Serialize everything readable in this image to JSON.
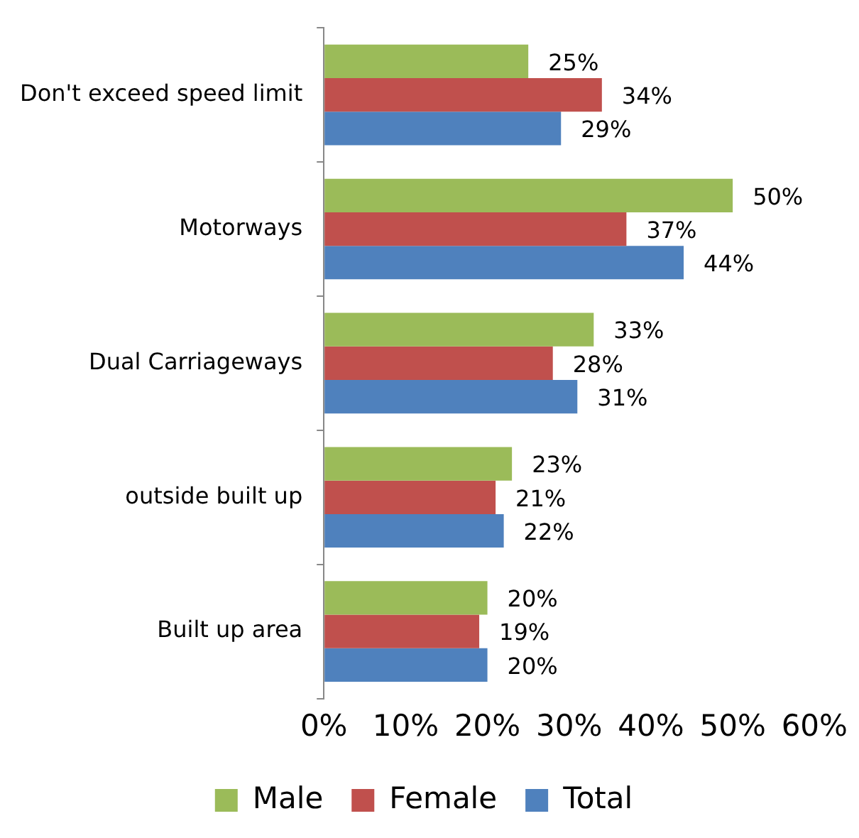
{
  "chart_data": {
    "type": "bar",
    "orientation": "horizontal",
    "categories": [
      "Don't exceed speed limit",
      "Motorways",
      "Dual Carriageways",
      "outside built up",
      "Built up area"
    ],
    "series": [
      {
        "name": "Male",
        "color": "#9bbb59",
        "values": [
          25,
          50,
          33,
          23,
          20
        ],
        "value_labels": [
          "25%",
          "50%",
          "33%",
          "23%",
          "20%"
        ]
      },
      {
        "name": "Female",
        "color": "#c0504d",
        "values": [
          34,
          37,
          28,
          21,
          19
        ],
        "value_labels": [
          "34%",
          "37%",
          "28%",
          "21%",
          "19%"
        ]
      },
      {
        "name": "Total",
        "color": "#4f81bd",
        "values": [
          29,
          44,
          31,
          22,
          20
        ],
        "value_labels": [
          "29%",
          "44%",
          "31%",
          "22%",
          "20%"
        ]
      }
    ],
    "xlim": [
      0,
      60
    ],
    "xticks": [
      {
        "value": 0,
        "label": "0%"
      },
      {
        "value": 10,
        "label": "10%"
      },
      {
        "value": 20,
        "label": "20%"
      },
      {
        "value": 30,
        "label": "30%"
      },
      {
        "value": 40,
        "label": "40%"
      },
      {
        "value": 50,
        "label": "50%"
      },
      {
        "value": 60,
        "label": "60%"
      }
    ],
    "grid": false,
    "legend": "bottom"
  }
}
